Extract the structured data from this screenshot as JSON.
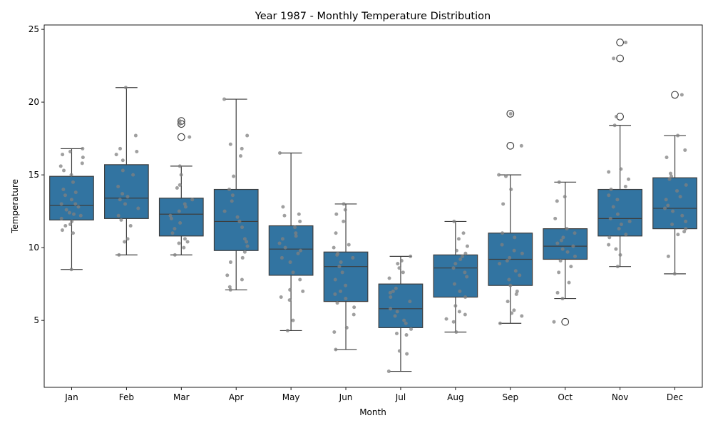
{
  "chart_data": {
    "type": "box",
    "title": "Year 1987 - Monthly Temperature Distribution",
    "xlabel": "Month",
    "ylabel": "Temperature",
    "ylim": [
      0.4,
      25.3
    ],
    "yticks": [
      5,
      10,
      15,
      20,
      25
    ],
    "grid": false,
    "colors": {
      "box": "#3274a1",
      "line": "#3d3d3d",
      "point": "#808080"
    },
    "categories": [
      "Jan",
      "Feb",
      "Mar",
      "Apr",
      "May",
      "Jun",
      "Jul",
      "Aug",
      "Sep",
      "Oct",
      "Nov",
      "Dec"
    ],
    "boxes": [
      {
        "month": "Jan",
        "whislo": 8.5,
        "q1": 11.9,
        "median": 12.9,
        "q3": 14.9,
        "whishi": 16.8,
        "fliers": []
      },
      {
        "month": "Feb",
        "whislo": 9.5,
        "q1": 12.0,
        "median": 13.4,
        "q3": 15.7,
        "whishi": 21.0,
        "fliers": []
      },
      {
        "month": "Mar",
        "whislo": 9.5,
        "q1": 10.8,
        "median": 12.3,
        "q3": 13.4,
        "whishi": 15.6,
        "fliers": [
          17.6,
          18.5,
          18.7
        ]
      },
      {
        "month": "Apr",
        "whislo": 7.1,
        "q1": 9.8,
        "median": 11.8,
        "q3": 14.0,
        "whishi": 20.2,
        "fliers": []
      },
      {
        "month": "May",
        "whislo": 4.3,
        "q1": 8.1,
        "median": 9.9,
        "q3": 11.5,
        "whishi": 16.5,
        "fliers": []
      },
      {
        "month": "Jun",
        "whislo": 3.0,
        "q1": 6.3,
        "median": 8.7,
        "q3": 9.7,
        "whishi": 13.0,
        "fliers": []
      },
      {
        "month": "Jul",
        "whislo": 1.5,
        "q1": 4.5,
        "median": 5.8,
        "q3": 7.5,
        "whishi": 9.4,
        "fliers": []
      },
      {
        "month": "Aug",
        "whislo": 4.2,
        "q1": 6.6,
        "median": 8.6,
        "q3": 9.5,
        "whishi": 11.8,
        "fliers": []
      },
      {
        "month": "Sep",
        "whislo": 4.8,
        "q1": 7.4,
        "median": 9.2,
        "q3": 11.0,
        "whishi": 15.0,
        "fliers": [
          17.0,
          19.2
        ]
      },
      {
        "month": "Oct",
        "whislo": 6.5,
        "q1": 9.2,
        "median": 10.1,
        "q3": 11.3,
        "whishi": 14.5,
        "fliers": [
          4.9
        ]
      },
      {
        "month": "Nov",
        "whislo": 8.7,
        "q1": 10.8,
        "median": 12.0,
        "q3": 14.0,
        "whishi": 18.4,
        "fliers": [
          19.0,
          23.0,
          24.1
        ]
      },
      {
        "month": "Dec",
        "whislo": 8.2,
        "q1": 11.3,
        "median": 12.7,
        "q3": 14.8,
        "whishi": 17.7,
        "fliers": [
          20.5
        ]
      }
    ],
    "points": [
      {
        "month": "Jan",
        "values": [
          8.5,
          11.0,
          11.2,
          11.5,
          11.6,
          11.8,
          12.0,
          12.2,
          12.3,
          12.4,
          12.6,
          12.8,
          13.0,
          13.0,
          13.3,
          13.6,
          13.8,
          14.0,
          14.5,
          15.0,
          15.3,
          15.6,
          15.8,
          16.2,
          16.4,
          16.6,
          16.8
        ]
      },
      {
        "month": "Feb",
        "values": [
          9.5,
          10.4,
          10.6,
          11.5,
          11.9,
          12.2,
          12.7,
          13.0,
          13.3,
          13.5,
          13.7,
          14.2,
          15.0,
          15.3,
          16.0,
          16.4,
          16.6,
          16.8,
          17.7,
          21.0
        ]
      },
      {
        "month": "Mar",
        "values": [
          9.5,
          10.0,
          10.3,
          10.4,
          10.6,
          11.0,
          11.3,
          11.7,
          12.0,
          12.2,
          12.5,
          12.8,
          13.0,
          13.3,
          14.1,
          14.3,
          15.0,
          15.6,
          17.6,
          18.5,
          18.7
        ]
      },
      {
        "month": "Apr",
        "values": [
          7.1,
          7.3,
          7.8,
          8.1,
          9.0,
          9.3,
          9.7,
          10.1,
          10.4,
          10.6,
          11.4,
          11.8,
          12.1,
          12.5,
          13.2,
          13.6,
          14.0,
          14.9,
          16.3,
          16.8,
          17.1,
          17.7,
          20.2
        ]
      },
      {
        "month": "May",
        "values": [
          4.3,
          5.0,
          6.4,
          6.6,
          7.0,
          7.1,
          7.8,
          8.3,
          9.0,
          9.3,
          9.6,
          9.8,
          10.0,
          10.3,
          10.6,
          10.8,
          11.0,
          11.4,
          11.8,
          12.2,
          12.3,
          12.8,
          16.5
        ]
      },
      {
        "month": "Jun",
        "values": [
          3.0,
          4.2,
          4.5,
          5.4,
          5.9,
          6.2,
          6.5,
          6.8,
          7.0,
          7.4,
          7.8,
          8.3,
          8.7,
          9.0,
          9.3,
          9.5,
          9.6,
          10.0,
          10.2,
          11.0,
          11.8,
          12.3,
          12.6,
          13.0
        ]
      },
      {
        "month": "Jul",
        "values": [
          1.5,
          2.7,
          2.9,
          4.0,
          4.1,
          4.4,
          4.8,
          5.0,
          5.3,
          5.6,
          5.8,
          6.3,
          6.6,
          6.9,
          7.0,
          7.2,
          7.9,
          8.3,
          8.6,
          8.9,
          9.1,
          9.4
        ]
      },
      {
        "month": "Aug",
        "values": [
          4.2,
          4.9,
          5.1,
          5.4,
          5.6,
          6.0,
          6.6,
          7.0,
          7.5,
          8.0,
          8.3,
          8.6,
          8.9,
          9.2,
          9.4,
          9.6,
          9.8,
          10.1,
          10.6,
          11.0,
          11.8
        ]
      },
      {
        "month": "Sep",
        "values": [
          4.8,
          5.3,
          5.5,
          5.7,
          6.3,
          6.8,
          7.0,
          7.4,
          7.8,
          8.1,
          8.4,
          8.9,
          9.1,
          9.3,
          9.6,
          9.8,
          10.2,
          10.7,
          11.0,
          13.0,
          14.0,
          14.9,
          15.0,
          17.0,
          19.2
        ]
      },
      {
        "month": "Oct",
        "values": [
          4.9,
          6.5,
          6.9,
          7.6,
          8.3,
          8.7,
          9.1,
          9.4,
          9.7,
          9.9,
          10.1,
          10.3,
          10.5,
          10.7,
          11.0,
          11.3,
          12.0,
          13.2,
          13.5,
          14.5
        ]
      },
      {
        "month": "Nov",
        "values": [
          8.7,
          9.5,
          9.9,
          10.2,
          10.7,
          10.9,
          11.3,
          11.6,
          11.8,
          12.0,
          12.3,
          12.8,
          13.3,
          13.6,
          14.0,
          14.2,
          14.7,
          15.2,
          15.4,
          18.4,
          19.0,
          23.0,
          24.1
        ]
      },
      {
        "month": "Dec",
        "values": [
          8.2,
          9.4,
          10.9,
          11.1,
          11.3,
          11.6,
          11.8,
          12.2,
          12.5,
          12.7,
          12.9,
          13.3,
          13.5,
          13.9,
          14.3,
          14.7,
          14.9,
          15.1,
          16.2,
          16.7,
          17.7,
          20.5
        ]
      }
    ]
  }
}
